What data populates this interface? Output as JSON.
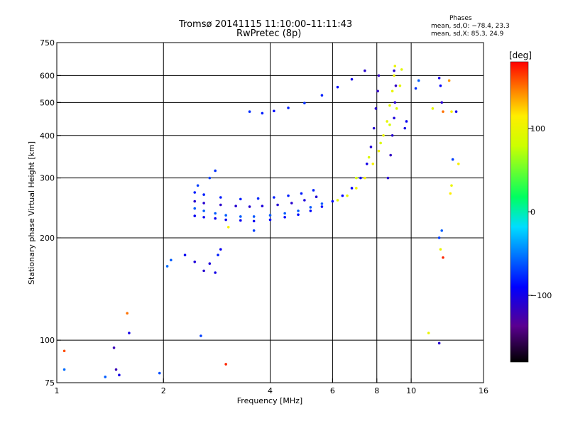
{
  "header": {
    "title": "Tromsø 20141115 11:10:00–11:11:43",
    "subtitle": "RwPretec (8p)"
  },
  "phase_info": {
    "heading": "Phases",
    "line_o": "mean, sd,O: −78.4, 23.3",
    "line_x": "mean, sd,X:  85.3, 24.9"
  },
  "colorbar": {
    "label": "[deg]",
    "range": [
      -180,
      180
    ],
    "ticks": [
      {
        "value": 100,
        "label": "100"
      },
      {
        "value": 0,
        "label": "0"
      },
      {
        "value": -100,
        "label": "−100"
      }
    ]
  },
  "chart_data": {
    "type": "scatter",
    "title": "Tromsø 20141115 11:10:00–11:11:43",
    "subtitle": "RwPretec (8p)",
    "xlabel": "Frequency [MHz]",
    "ylabel": "Stationary phase Virtual Height [km]",
    "x_scale": "log",
    "y_scale": "log",
    "xlim": [
      1,
      16
    ],
    "ylim": [
      75,
      750
    ],
    "x_ticks": [
      {
        "value": 1,
        "label": "1"
      },
      {
        "value": 2,
        "label": "2"
      },
      {
        "value": 4,
        "label": "4"
      },
      {
        "value": 6,
        "label": "6"
      },
      {
        "value": 8,
        "label": "8"
      },
      {
        "value": 10,
        "label": "10"
      },
      {
        "value": 16,
        "label": "16"
      }
    ],
    "y_ticks": [
      {
        "value": 75,
        "label": "75"
      },
      {
        "value": 100,
        "label": "100"
      },
      {
        "value": 200,
        "label": "200"
      },
      {
        "value": 300,
        "label": "300"
      },
      {
        "value": 400,
        "label": "400"
      },
      {
        "value": 500,
        "label": "500"
      },
      {
        "value": 600,
        "label": "600"
      },
      {
        "value": 750,
        "label": "750"
      }
    ],
    "grid_x": [
      2,
      4,
      6,
      8,
      10
    ],
    "grid_y": [
      100,
      200,
      300,
      400,
      500,
      600
    ],
    "grid": true,
    "color_by": "phase [deg]",
    "points": [
      [
        2.45,
        232,
        -95
      ],
      [
        2.6,
        230,
        -95
      ],
      [
        2.8,
        228,
        -95
      ],
      [
        3.0,
        226,
        -95
      ],
      [
        3.3,
        225,
        -95
      ],
      [
        3.6,
        224,
        -95
      ],
      [
        4.0,
        226,
        -90
      ],
      [
        4.4,
        230,
        -90
      ],
      [
        4.8,
        234,
        -88
      ],
      [
        5.2,
        240,
        -88
      ],
      [
        5.6,
        247,
        -90
      ],
      [
        6.0,
        256,
        -88
      ],
      [
        6.4,
        266,
        -90
      ],
      [
        6.8,
        280,
        -92
      ],
      [
        7.2,
        300,
        -95
      ],
      [
        7.5,
        330,
        -100
      ],
      [
        7.7,
        370,
        -105
      ],
      [
        7.85,
        420,
        -110
      ],
      [
        7.95,
        480,
        -110
      ],
      [
        8.05,
        540,
        -115
      ],
      [
        8.1,
        600,
        -115
      ],
      [
        2.45,
        244,
        -60
      ],
      [
        2.6,
        240,
        -60
      ],
      [
        2.8,
        236,
        -60
      ],
      [
        3.0,
        233,
        -60
      ],
      [
        3.3,
        231,
        -60
      ],
      [
        3.6,
        231,
        -62
      ],
      [
        4.0,
        233,
        -62
      ],
      [
        4.4,
        236,
        -60
      ],
      [
        4.8,
        240,
        -60
      ],
      [
        5.2,
        246,
        -62
      ],
      [
        5.6,
        252,
        -60
      ],
      [
        2.45,
        256,
        -110
      ],
      [
        2.6,
        253,
        -110
      ],
      [
        2.9,
        250,
        -112
      ],
      [
        3.2,
        248,
        -110
      ],
      [
        3.5,
        247,
        -110
      ],
      [
        3.8,
        248,
        -105
      ],
      [
        4.2,
        250,
        -108
      ],
      [
        4.6,
        253,
        -110
      ],
      [
        5.0,
        258,
        -105
      ],
      [
        5.4,
        264,
        -108
      ],
      [
        2.45,
        272,
        -80
      ],
      [
        2.6,
        268,
        -80
      ],
      [
        2.9,
        263,
        -82
      ],
      [
        3.3,
        260,
        -80
      ],
      [
        3.7,
        261,
        -78
      ],
      [
        4.1,
        263,
        -80
      ],
      [
        4.5,
        266,
        -80
      ],
      [
        4.9,
        270,
        -82
      ],
      [
        5.3,
        276,
        -80
      ],
      [
        2.5,
        285,
        -70
      ],
      [
        2.7,
        300,
        -70
      ],
      [
        2.8,
        315,
        -75
      ],
      [
        2.05,
        165,
        -55
      ],
      [
        2.1,
        172,
        -60
      ],
      [
        2.3,
        178,
        -95
      ],
      [
        2.45,
        170,
        -105
      ],
      [
        2.6,
        160,
        -110
      ],
      [
        2.7,
        168,
        -105
      ],
      [
        2.8,
        158,
        -100
      ],
      [
        2.85,
        178,
        -80
      ],
      [
        2.9,
        185,
        -95
      ],
      [
        3.5,
        470,
        -75
      ],
      [
        3.8,
        465,
        -80
      ],
      [
        4.1,
        472,
        -85
      ],
      [
        4.5,
        482,
        -80
      ],
      [
        5.0,
        498,
        -75
      ],
      [
        5.6,
        525,
        -80
      ],
      [
        6.2,
        555,
        -85
      ],
      [
        6.8,
        585,
        -100
      ],
      [
        7.4,
        620,
        -110
      ],
      [
        6.2,
        258,
        95
      ],
      [
        6.6,
        266,
        100
      ],
      [
        7.0,
        280,
        105
      ],
      [
        7.4,
        300,
        110
      ],
      [
        7.8,
        330,
        108
      ],
      [
        8.1,
        360,
        105
      ],
      [
        8.35,
        400,
        100
      ],
      [
        8.55,
        440,
        98
      ],
      [
        8.7,
        490,
        95
      ],
      [
        8.85,
        540,
        100
      ],
      [
        8.95,
        600,
        105
      ],
      [
        9.0,
        640,
        100
      ],
      [
        7.0,
        300,
        85
      ],
      [
        7.6,
        345,
        90
      ],
      [
        8.2,
        380,
        90
      ],
      [
        8.7,
        430,
        85
      ],
      [
        9.1,
        480,
        90
      ],
      [
        9.3,
        560,
        95
      ],
      [
        9.4,
        625,
        95
      ],
      [
        8.6,
        300,
        -110
      ],
      [
        8.75,
        350,
        -115
      ],
      [
        8.85,
        400,
        -110
      ],
      [
        8.95,
        450,
        -105
      ],
      [
        9.0,
        500,
        -110
      ],
      [
        9.05,
        560,
        -115
      ],
      [
        8.95,
        620,
        -110
      ],
      [
        9.6,
        420,
        -100
      ],
      [
        9.7,
        440,
        -95
      ],
      [
        10.3,
        550,
        -75
      ],
      [
        10.5,
        580,
        -60
      ],
      [
        12.0,
        590,
        -100
      ],
      [
        12.1,
        560,
        -90
      ],
      [
        12.2,
        500,
        -110
      ],
      [
        12.3,
        470,
        150
      ],
      [
        11.5,
        480,
        95
      ],
      [
        12.0,
        200,
        -70
      ],
      [
        12.2,
        210,
        -60
      ],
      [
        12.3,
        175,
        170
      ],
      [
        12.1,
        185,
        100
      ],
      [
        12.0,
        98,
        -110
      ],
      [
        12.8,
        580,
        140
      ],
      [
        13.0,
        470,
        110
      ],
      [
        13.1,
        340,
        -70
      ],
      [
        13.4,
        470,
        -100
      ],
      [
        13.6,
        330,
        110
      ],
      [
        12.9,
        270,
        115
      ],
      [
        13.0,
        285,
        100
      ],
      [
        11.2,
        105,
        100
      ],
      [
        2.55,
        103,
        -70
      ],
      [
        1.6,
        105,
        -100
      ],
      [
        1.58,
        120,
        150
      ],
      [
        1.45,
        95,
        -120
      ],
      [
        1.05,
        93,
        160
      ],
      [
        1.05,
        82,
        -55
      ],
      [
        1.37,
        78,
        -60
      ],
      [
        1.47,
        82,
        -120
      ],
      [
        1.5,
        79,
        -100
      ],
      [
        1.95,
        80,
        -65
      ],
      [
        3.0,
        85,
        170
      ],
      [
        3.05,
        215,
        110
      ],
      [
        3.6,
        210,
        -70
      ]
    ]
  }
}
